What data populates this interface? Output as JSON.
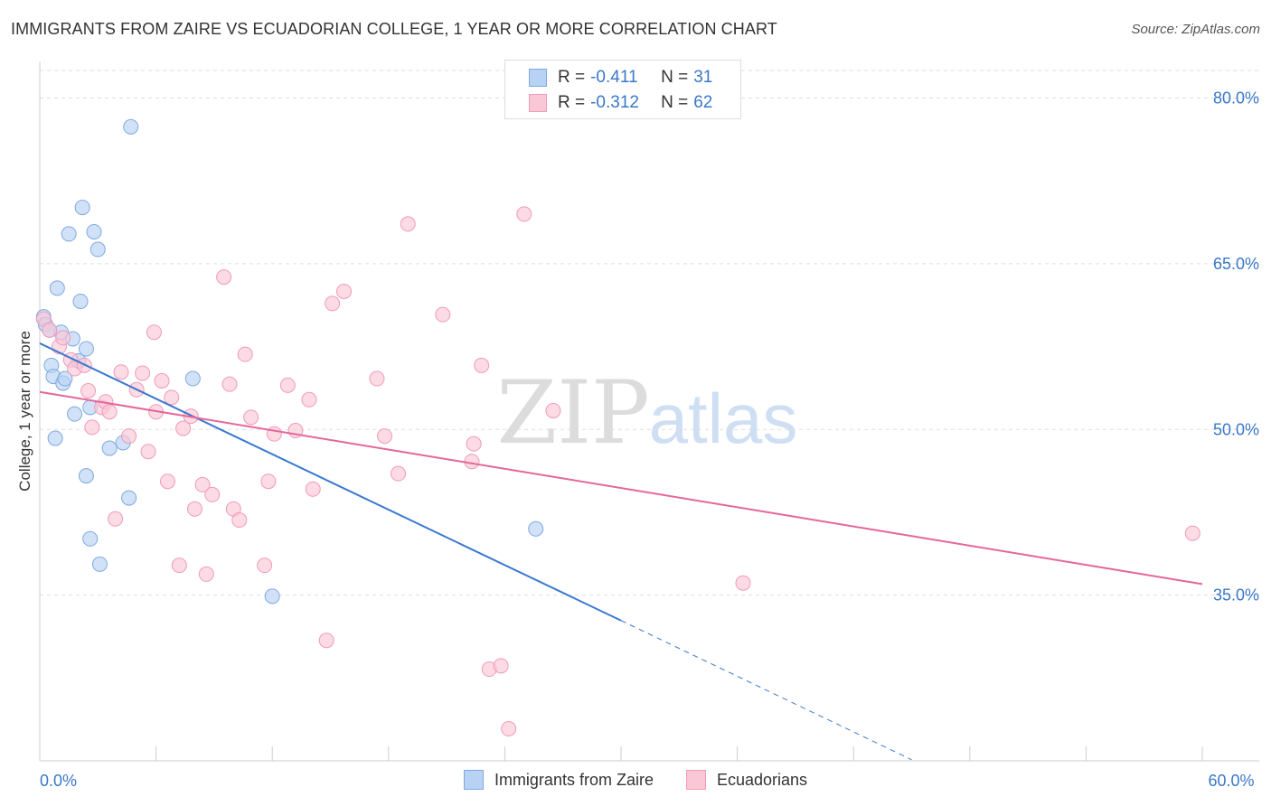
{
  "title": "IMMIGRANTS FROM ZAIRE VS ECUADORIAN COLLEGE, 1 YEAR OR MORE CORRELATION CHART",
  "source": "Source: ZipAtlas.com",
  "watermark": {
    "zip": "ZIP",
    "atlas": "atlas"
  },
  "legend": {
    "r_label": "R =",
    "n_label": "N =",
    "rows": [
      {
        "r": "-0.411",
        "n": "31",
        "fill": "#b8d2f5",
        "stroke": "#7fa8e0"
      },
      {
        "r": "-0.312",
        "n": "62",
        "fill": "#fac7d7",
        "stroke": "#f09ab8"
      }
    ]
  },
  "bottom_legend": [
    {
      "label": "Immigrants from Zaire",
      "fill": "#b8d2f5",
      "stroke": "#7fa8e0"
    },
    {
      "label": "Ecuadorians",
      "fill": "#fac7d7",
      "stroke": "#f09ab8"
    }
  ],
  "chart_data": {
    "type": "scatter",
    "title": "IMMIGRANTS FROM ZAIRE VS ECUADORIAN COLLEGE, 1 YEAR OR MORE CORRELATION CHART",
    "xlabel": "",
    "ylabel": "College, 1 year or more",
    "xlim": [
      0,
      60
    ],
    "ylim": [
      20,
      82.5
    ],
    "x_tick_labels": [
      {
        "value": 0,
        "label": "0.0%"
      },
      {
        "value": 60,
        "label": "60.0%"
      }
    ],
    "y_tick_labels": [
      {
        "value": 80,
        "label": "80.0%"
      },
      {
        "value": 65,
        "label": "65.0%"
      },
      {
        "value": 50,
        "label": "50.0%"
      },
      {
        "value": 35,
        "label": "35.0%"
      }
    ],
    "x_minor_ticks": [
      0,
      6,
      12,
      18,
      24,
      30,
      36,
      42,
      48,
      54,
      60
    ],
    "grid": true,
    "series": [
      {
        "name": "Immigrants from Zaire",
        "color": "#3a78d0",
        "fill": "#b8d2f5",
        "stroke": "#7fa8e0",
        "points": [
          [
            0.2,
            60.2
          ],
          [
            0.3,
            59.5
          ],
          [
            0.5,
            59.0
          ],
          [
            0.6,
            55.8
          ],
          [
            0.7,
            54.8
          ],
          [
            0.8,
            49.2
          ],
          [
            0.9,
            62.8
          ],
          [
            1.1,
            58.8
          ],
          [
            1.2,
            54.2
          ],
          [
            1.3,
            54.6
          ],
          [
            1.5,
            67.7
          ],
          [
            1.7,
            58.2
          ],
          [
            1.8,
            51.4
          ],
          [
            2.0,
            56.2
          ],
          [
            2.1,
            61.6
          ],
          [
            2.2,
            70.1
          ],
          [
            2.4,
            57.3
          ],
          [
            2.4,
            45.8
          ],
          [
            2.6,
            40.1
          ],
          [
            2.6,
            52.0
          ],
          [
            2.8,
            67.9
          ],
          [
            3.0,
            66.3
          ],
          [
            3.1,
            37.8
          ],
          [
            3.6,
            48.3
          ],
          [
            4.3,
            48.8
          ],
          [
            4.6,
            43.8
          ],
          [
            4.7,
            77.4
          ],
          [
            7.9,
            54.6
          ],
          [
            12.0,
            34.9
          ],
          [
            25.6,
            41.0
          ]
        ],
        "trend": {
          "x0": 0,
          "y0": 57.8,
          "x1": 30.0,
          "y1": 32.7,
          "dash_to_x": 45.0,
          "dash_to_y": 20.1
        }
      },
      {
        "name": "Ecuadorians",
        "color": "#e4679a",
        "fill": "#fac7d7",
        "stroke": "#f09ab8",
        "points": [
          [
            0.2,
            60.0
          ],
          [
            0.5,
            59.0
          ],
          [
            1.0,
            57.5
          ],
          [
            1.2,
            58.3
          ],
          [
            1.6,
            56.3
          ],
          [
            1.8,
            55.5
          ],
          [
            2.3,
            55.8
          ],
          [
            2.5,
            53.5
          ],
          [
            2.7,
            50.2
          ],
          [
            3.2,
            52.0
          ],
          [
            3.4,
            52.5
          ],
          [
            3.6,
            51.6
          ],
          [
            3.9,
            41.9
          ],
          [
            4.2,
            55.2
          ],
          [
            4.6,
            49.4
          ],
          [
            5.0,
            53.6
          ],
          [
            5.3,
            55.1
          ],
          [
            5.6,
            48.0
          ],
          [
            5.9,
            58.8
          ],
          [
            6.0,
            51.6
          ],
          [
            6.3,
            54.4
          ],
          [
            6.6,
            45.3
          ],
          [
            6.8,
            52.9
          ],
          [
            7.2,
            37.7
          ],
          [
            7.4,
            50.1
          ],
          [
            7.8,
            51.2
          ],
          [
            8.0,
            42.8
          ],
          [
            8.4,
            45.0
          ],
          [
            8.6,
            36.9
          ],
          [
            8.9,
            44.1
          ],
          [
            9.5,
            63.8
          ],
          [
            9.8,
            54.1
          ],
          [
            10.0,
            42.8
          ],
          [
            10.3,
            41.8
          ],
          [
            10.6,
            56.8
          ],
          [
            10.9,
            51.1
          ],
          [
            11.6,
            37.7
          ],
          [
            11.8,
            45.3
          ],
          [
            12.1,
            49.6
          ],
          [
            12.8,
            54.0
          ],
          [
            13.2,
            49.9
          ],
          [
            13.9,
            52.7
          ],
          [
            14.1,
            44.6
          ],
          [
            14.8,
            30.9
          ],
          [
            15.1,
            61.4
          ],
          [
            15.7,
            62.5
          ],
          [
            17.4,
            54.6
          ],
          [
            17.8,
            49.4
          ],
          [
            18.5,
            46.0
          ],
          [
            19.0,
            68.6
          ],
          [
            20.8,
            60.4
          ],
          [
            22.3,
            47.1
          ],
          [
            22.4,
            48.7
          ],
          [
            22.8,
            55.8
          ],
          [
            23.2,
            28.3
          ],
          [
            23.8,
            28.6
          ],
          [
            24.2,
            22.9
          ],
          [
            25.0,
            69.5
          ],
          [
            26.5,
            51.7
          ],
          [
            36.3,
            36.1
          ],
          [
            59.5,
            40.6
          ]
        ],
        "trend": {
          "x0": 0,
          "y0": 53.4,
          "x1": 60.0,
          "y1": 36.0
        }
      }
    ]
  }
}
